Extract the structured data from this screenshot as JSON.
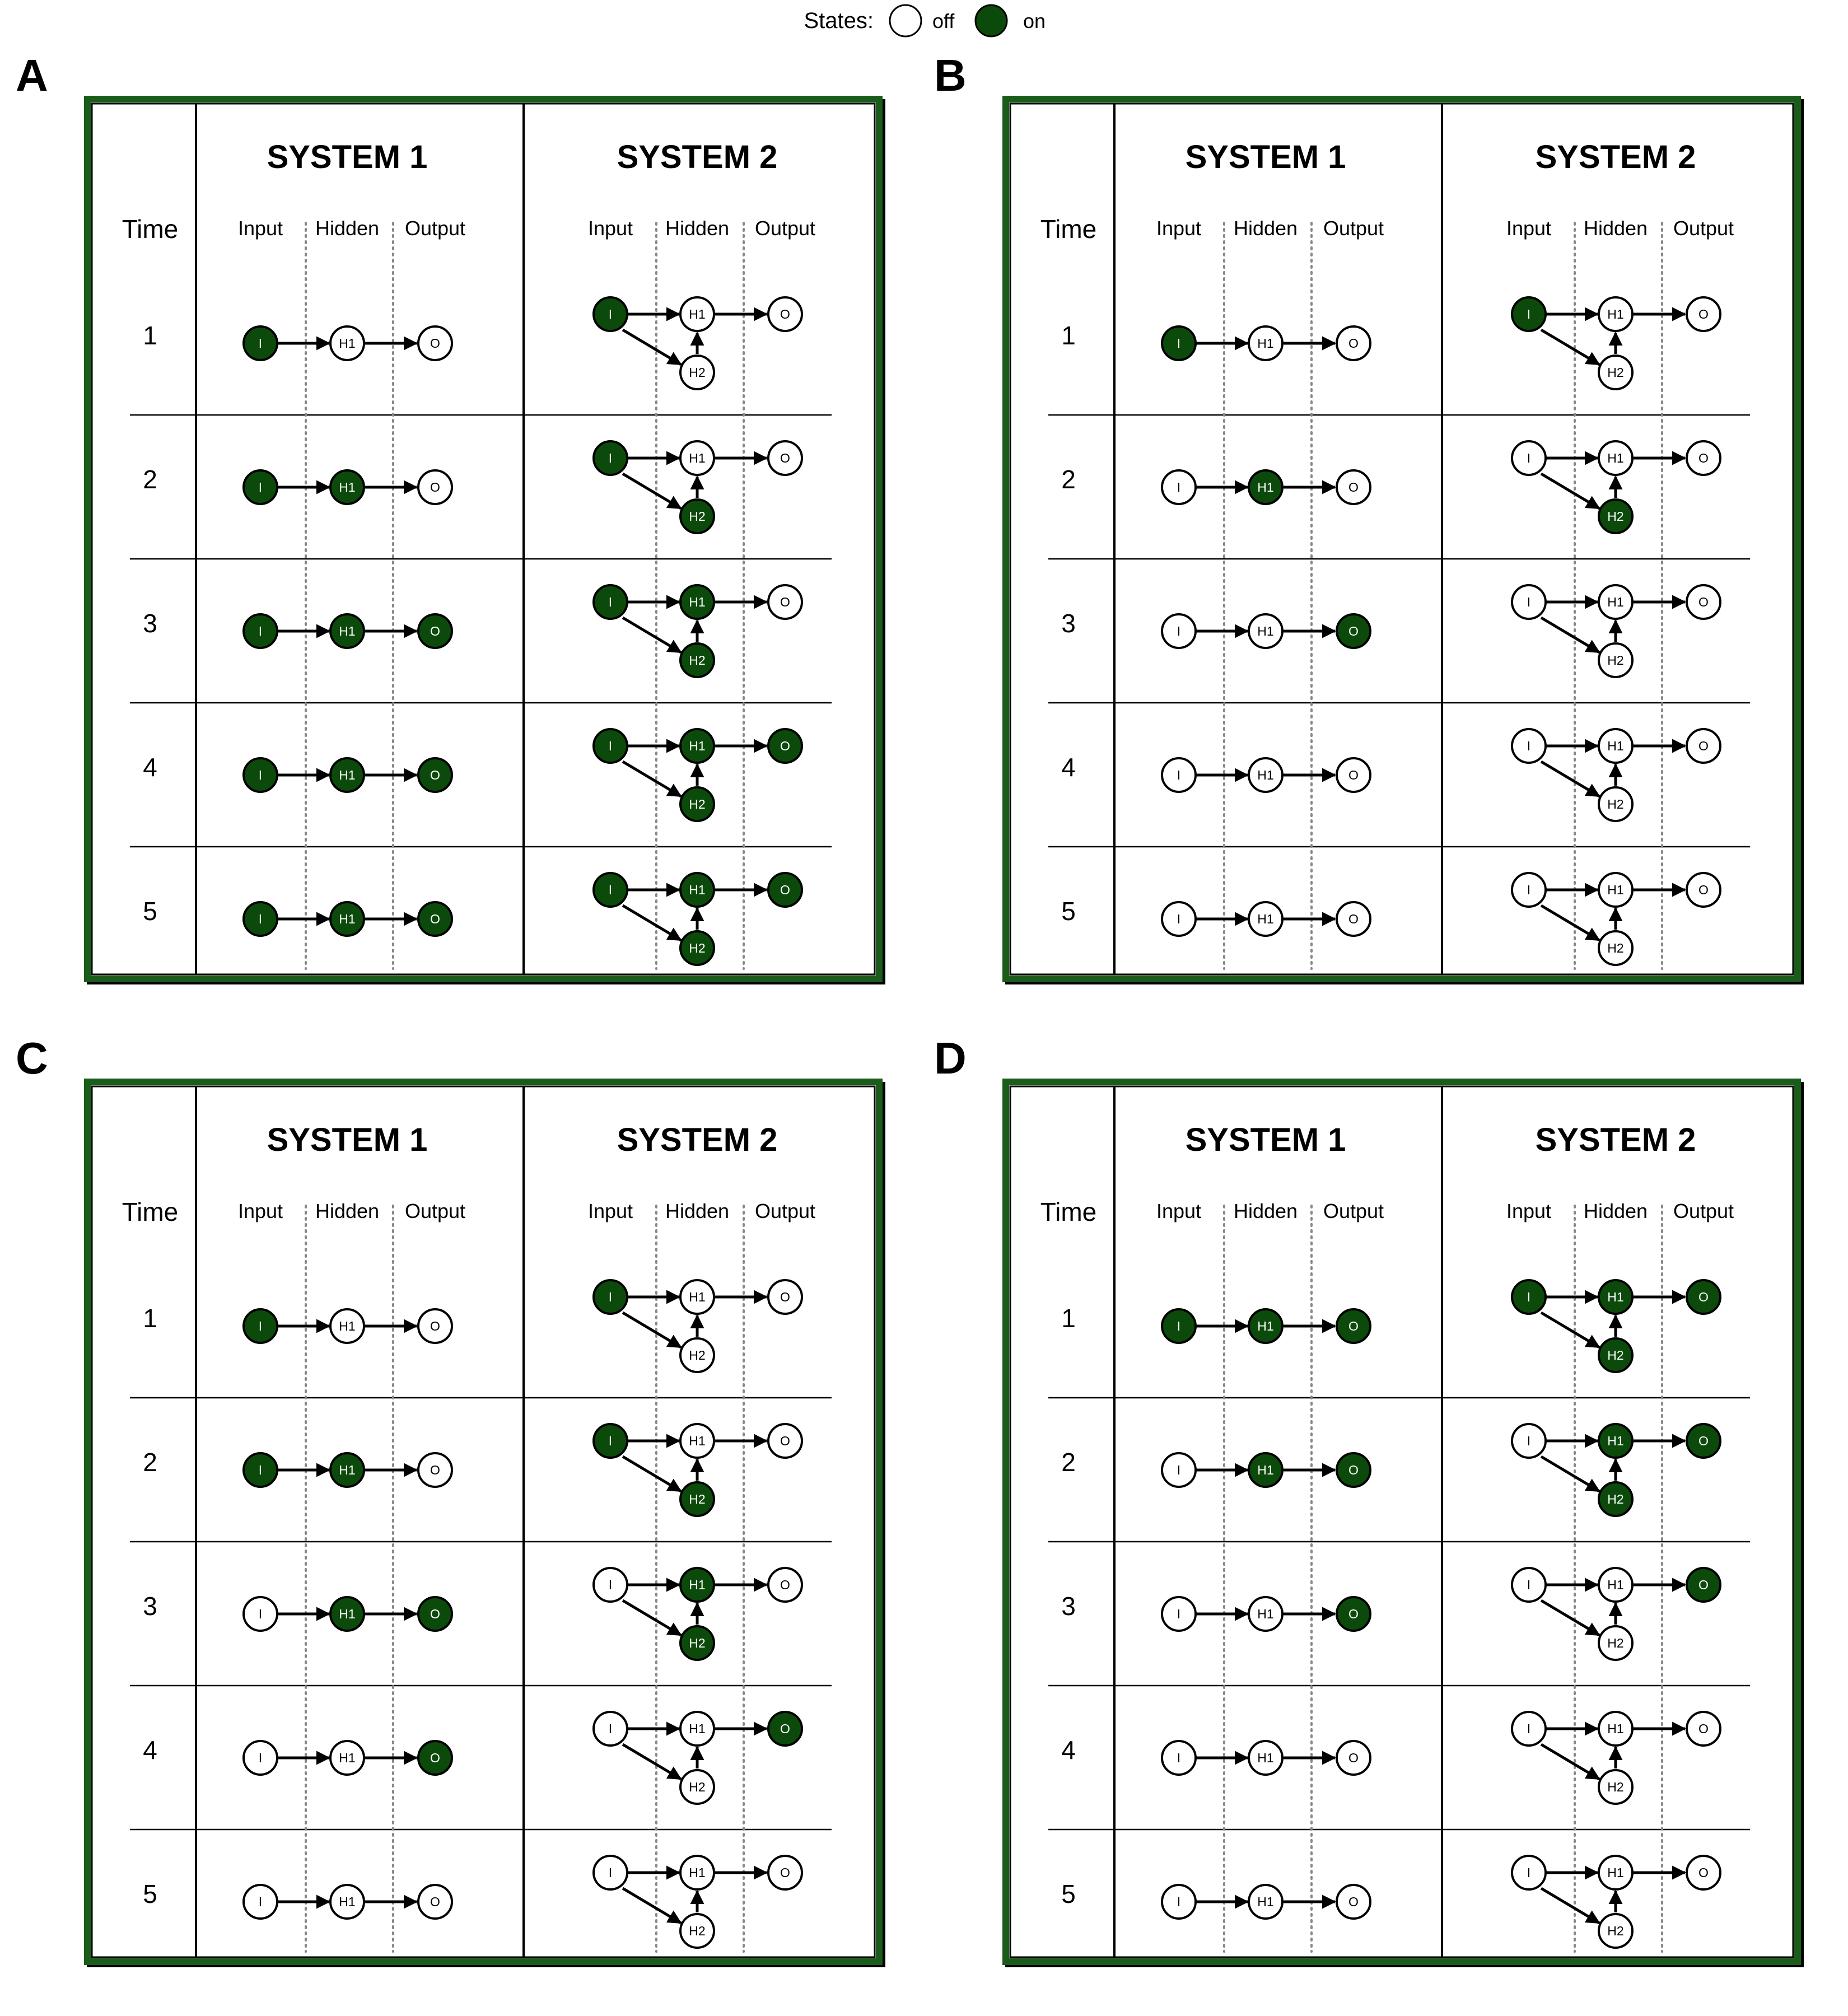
{
  "legend": {
    "label": "States:",
    "off_label": "off",
    "on_label": "on"
  },
  "colors": {
    "on_fill": "#0b4a0b",
    "off_fill": "#ffffff",
    "frame": "#1a5c1a",
    "stroke": "#000000",
    "separator": "#888888"
  },
  "headings": {
    "time": "Time",
    "system1": "SYSTEM 1",
    "system2": "SYSTEM 2",
    "input": "Input",
    "hidden": "Hidden",
    "output": "Output"
  },
  "node_labels": {
    "I": "I",
    "H1": "H1",
    "H2": "H2",
    "O": "O"
  },
  "time_steps": [
    "1",
    "2",
    "3",
    "4",
    "5"
  ],
  "panels": [
    {
      "letter": "A",
      "rows": [
        {
          "s1": {
            "I": 1,
            "H1": 0,
            "O": 0
          },
          "s2": {
            "I": 1,
            "H1": 0,
            "H2": 0,
            "O": 0
          }
        },
        {
          "s1": {
            "I": 1,
            "H1": 1,
            "O": 0
          },
          "s2": {
            "I": 1,
            "H1": 0,
            "H2": 1,
            "O": 0
          }
        },
        {
          "s1": {
            "I": 1,
            "H1": 1,
            "O": 1
          },
          "s2": {
            "I": 1,
            "H1": 1,
            "H2": 1,
            "O": 0
          }
        },
        {
          "s1": {
            "I": 1,
            "H1": 1,
            "O": 1
          },
          "s2": {
            "I": 1,
            "H1": 1,
            "H2": 1,
            "O": 1
          }
        },
        {
          "s1": {
            "I": 1,
            "H1": 1,
            "O": 1
          },
          "s2": {
            "I": 1,
            "H1": 1,
            "H2": 1,
            "O": 1
          }
        }
      ]
    },
    {
      "letter": "B",
      "rows": [
        {
          "s1": {
            "I": 1,
            "H1": 0,
            "O": 0
          },
          "s2": {
            "I": 1,
            "H1": 0,
            "H2": 0,
            "O": 0
          }
        },
        {
          "s1": {
            "I": 0,
            "H1": 1,
            "O": 0
          },
          "s2": {
            "I": 0,
            "H1": 0,
            "H2": 1,
            "O": 0
          }
        },
        {
          "s1": {
            "I": 0,
            "H1": 0,
            "O": 1
          },
          "s2": {
            "I": 0,
            "H1": 0,
            "H2": 0,
            "O": 0
          }
        },
        {
          "s1": {
            "I": 0,
            "H1": 0,
            "O": 0
          },
          "s2": {
            "I": 0,
            "H1": 0,
            "H2": 0,
            "O": 0
          }
        },
        {
          "s1": {
            "I": 0,
            "H1": 0,
            "O": 0
          },
          "s2": {
            "I": 0,
            "H1": 0,
            "H2": 0,
            "O": 0
          }
        }
      ]
    },
    {
      "letter": "C",
      "rows": [
        {
          "s1": {
            "I": 1,
            "H1": 0,
            "O": 0
          },
          "s2": {
            "I": 1,
            "H1": 0,
            "H2": 0,
            "O": 0
          }
        },
        {
          "s1": {
            "I": 1,
            "H1": 1,
            "O": 0
          },
          "s2": {
            "I": 1,
            "H1": 0,
            "H2": 1,
            "O": 0
          }
        },
        {
          "s1": {
            "I": 0,
            "H1": 1,
            "O": 1
          },
          "s2": {
            "I": 0,
            "H1": 1,
            "H2": 1,
            "O": 0
          }
        },
        {
          "s1": {
            "I": 0,
            "H1": 0,
            "O": 1
          },
          "s2": {
            "I": 0,
            "H1": 0,
            "H2": 0,
            "O": 1
          }
        },
        {
          "s1": {
            "I": 0,
            "H1": 0,
            "O": 0
          },
          "s2": {
            "I": 0,
            "H1": 0,
            "H2": 0,
            "O": 0
          }
        }
      ]
    },
    {
      "letter": "D",
      "rows": [
        {
          "s1": {
            "I": 1,
            "H1": 1,
            "O": 1
          },
          "s2": {
            "I": 1,
            "H1": 1,
            "H2": 1,
            "O": 1
          }
        },
        {
          "s1": {
            "I": 0,
            "H1": 1,
            "O": 1
          },
          "s2": {
            "I": 0,
            "H1": 1,
            "H2": 1,
            "O": 1
          }
        },
        {
          "s1": {
            "I": 0,
            "H1": 0,
            "O": 1
          },
          "s2": {
            "I": 0,
            "H1": 0,
            "H2": 0,
            "O": 1
          }
        },
        {
          "s1": {
            "I": 0,
            "H1": 0,
            "O": 0
          },
          "s2": {
            "I": 0,
            "H1": 0,
            "H2": 0,
            "O": 0
          }
        },
        {
          "s1": {
            "I": 0,
            "H1": 0,
            "O": 0
          },
          "s2": {
            "I": 0,
            "H1": 0,
            "H2": 0,
            "O": 0
          }
        }
      ]
    }
  ]
}
